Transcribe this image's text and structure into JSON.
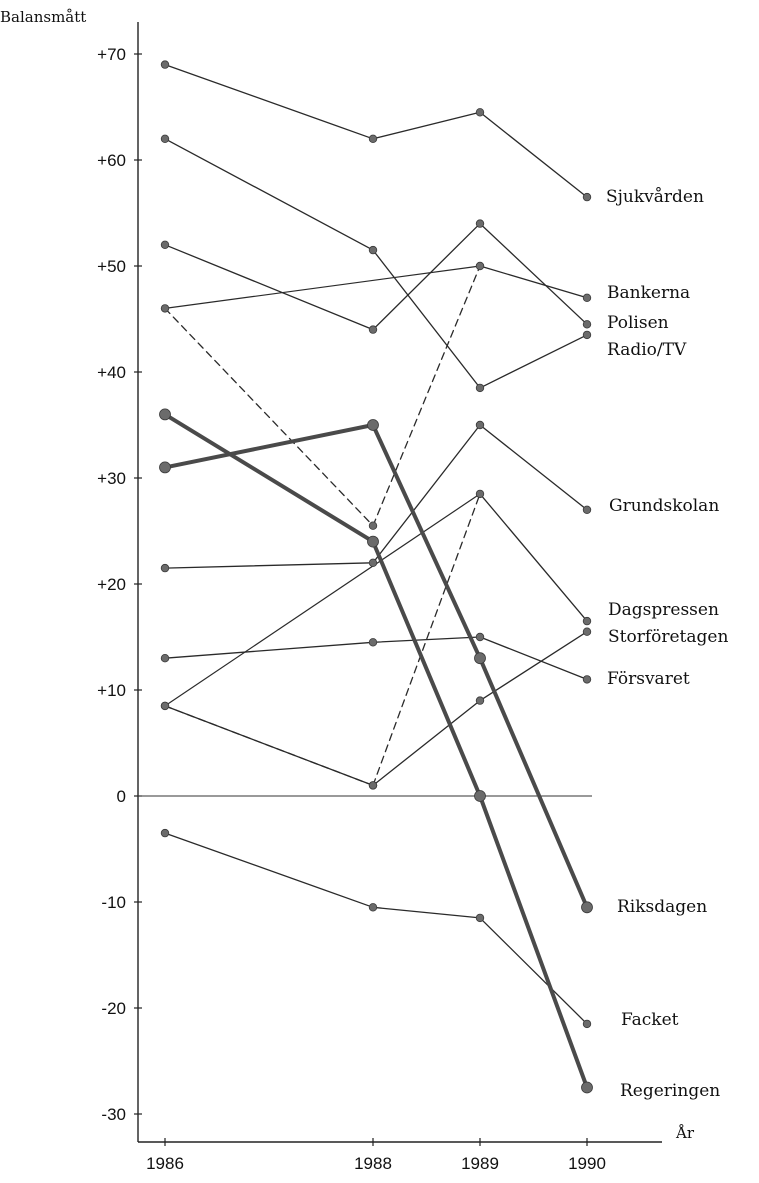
{
  "chart_data": {
    "type": "line",
    "ylabel": "Balansmått",
    "xlabel": "År",
    "x": [
      1986,
      1988,
      1989,
      1990
    ],
    "x_tick_labels": [
      "1986",
      "1988",
      "1989",
      "1990"
    ],
    "ylim": [
      -32,
      74
    ],
    "y_ticks": [
      70,
      60,
      50,
      40,
      30,
      20,
      10,
      0,
      -10,
      -20,
      -30
    ],
    "y_tick_labels": [
      "+70",
      "+60",
      "+50",
      "+40",
      "+30",
      "+20",
      "+10",
      "0",
      "-10",
      "-20",
      "-30"
    ],
    "zero_line": true,
    "grid": false,
    "legend": "labels at line ends (right)",
    "series": [
      {
        "name": "Sjukvården",
        "values": [
          69,
          62,
          64.5,
          56.5
        ],
        "style": "solid",
        "weight": "normal"
      },
      {
        "name": "Bankerna",
        "values": [
          46,
          25.5,
          50,
          47
        ],
        "style": "mixed",
        "weight": "normal"
      },
      {
        "name": "Polisen",
        "values": [
          52,
          44,
          54,
          44.5
        ],
        "style": "solid",
        "weight": "normal"
      },
      {
        "name": "Radio/TV",
        "values": [
          62,
          51.5,
          38.5,
          43.5
        ],
        "style": "solid",
        "weight": "normal"
      },
      {
        "name": "Grundskolan",
        "values": [
          21.5,
          22,
          35,
          27
        ],
        "style": "solid",
        "weight": "normal"
      },
      {
        "name": "Dagspressen",
        "values": [
          8.5,
          1,
          28.5,
          16.5
        ],
        "style": "mixed",
        "weight": "normal"
      },
      {
        "name": "Storföretagen",
        "values": [
          8.5,
          1,
          9,
          15.5
        ],
        "style": "solid",
        "weight": "normal"
      },
      {
        "name": "Försvaret",
        "values": [
          13,
          14.5,
          15,
          11
        ],
        "style": "solid",
        "weight": "normal"
      },
      {
        "name": "Riksdagen",
        "values": [
          31,
          35,
          13,
          -10.5
        ],
        "style": "solid",
        "weight": "heavy"
      },
      {
        "name": "Facket",
        "values": [
          -3.5,
          -10.5,
          -11.5,
          -21.5
        ],
        "style": "solid",
        "weight": "normal"
      },
      {
        "name": "Regeringen",
        "values": [
          36,
          24,
          0,
          -27.5
        ],
        "style": "solid",
        "weight": "heavy"
      }
    ],
    "extra_segments": [
      {
        "series": "Bankerna",
        "from": [
          1986,
          46
        ],
        "to": [
          1989,
          50
        ],
        "style": "solid"
      },
      {
        "series": "Dagspressen",
        "from": [
          1986,
          8.5
        ],
        "to": [
          1989,
          28.5
        ],
        "style": "solid"
      }
    ]
  },
  "colors": {
    "line": "#2a2a2a",
    "marker": "#6b6b6b",
    "heavy_line": "#4a4a4a"
  }
}
